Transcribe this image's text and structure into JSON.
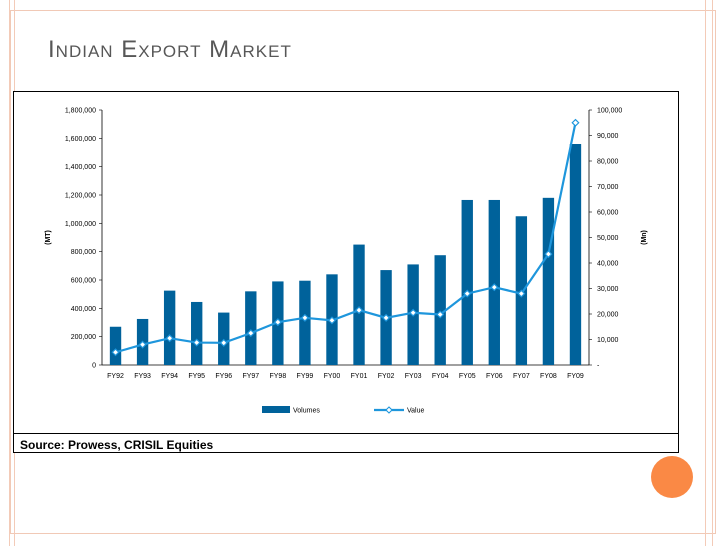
{
  "slide": {
    "title": "Indian Export Market",
    "source": "Source: Prowess, CRISIL Equities"
  },
  "chart_data": {
    "type": "bar",
    "categories": [
      "FY92",
      "FY93",
      "FY94",
      "FY95",
      "FY96",
      "FY97",
      "FY98",
      "FY99",
      "FY00",
      "FY01",
      "FY02",
      "FY03",
      "FY04",
      "FY05",
      "FY06",
      "FY07",
      "FY08",
      "FY09"
    ],
    "series": [
      {
        "name": "Volumes",
        "type": "bar",
        "axis": "left",
        "color": "#00629b",
        "values": [
          270000,
          325000,
          525000,
          445000,
          370000,
          520000,
          590000,
          595000,
          640000,
          850000,
          670000,
          710000,
          775000,
          1165000,
          1165000,
          1050000,
          1180000,
          1560000
        ]
      },
      {
        "name": "Value",
        "type": "line",
        "axis": "right",
        "color": "#1e96dc",
        "values": [
          5000,
          8000,
          10500,
          8800,
          8700,
          12500,
          16800,
          18500,
          17500,
          21500,
          18500,
          20500,
          19800,
          28000,
          30500,
          28000,
          43500,
          95000
        ]
      }
    ],
    "ylabel": "(MT)",
    "y2label": "(Mn)",
    "ylim": [
      0,
      1800000
    ],
    "y2lim": [
      0,
      100000
    ],
    "yticks": [
      "0",
      "200,000",
      "400,000",
      "600,000",
      "800,000",
      "1,000,000",
      "1,200,000",
      "1,400,000",
      "1,600,000",
      "1,800,000"
    ],
    "y2ticks": [
      "-",
      "10,000",
      "20,000",
      "30,000",
      "40,000",
      "50,000",
      "60,000",
      "70,000",
      "80,000",
      "90,000",
      "100,000"
    ],
    "legend": "bottom"
  }
}
